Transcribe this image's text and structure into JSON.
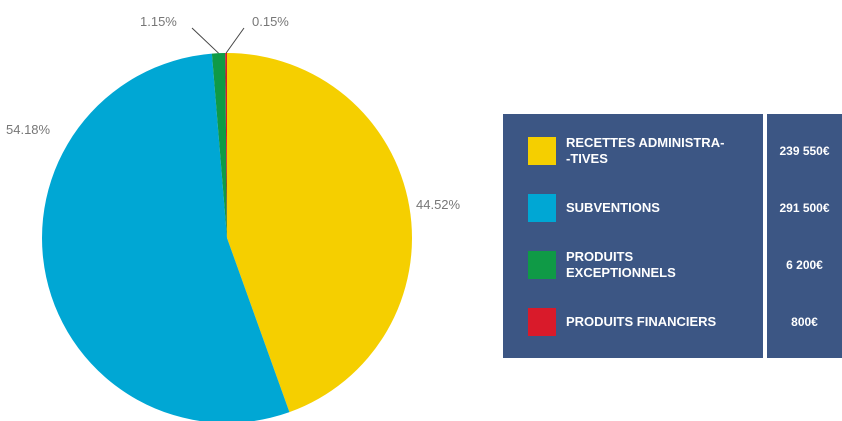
{
  "chart_data": {
    "type": "pie",
    "slices": [
      {
        "label": "RECETTES ADMINISTRA-\n-TIVES",
        "value": 239550,
        "display_value": "239 550€",
        "percent_label": "44.52%",
        "color": "#f5cf00"
      },
      {
        "label": "SUBVENTIONS",
        "value": 291500,
        "display_value": "291 500€",
        "percent_label": "54.18%",
        "color": "#00a7d4"
      },
      {
        "label": "PRODUITS\nEXCEPTIONNELS",
        "value": 6200,
        "display_value": "6 200€",
        "percent_label": "1.15%",
        "color": "#0f9a46"
      },
      {
        "label": "PRODUITS FINANCIERS",
        "value": 800,
        "display_value": "800€",
        "percent_label": "0.15%",
        "color": "#d91a2a"
      }
    ],
    "start_angle_deg": 0,
    "direction": "clockwise",
    "legend_placement": "right"
  },
  "colors": {
    "legend_background": "#3c5684",
    "legend_text": "#ffffff",
    "percent_label": "#777777",
    "leader_line": "#444444"
  }
}
